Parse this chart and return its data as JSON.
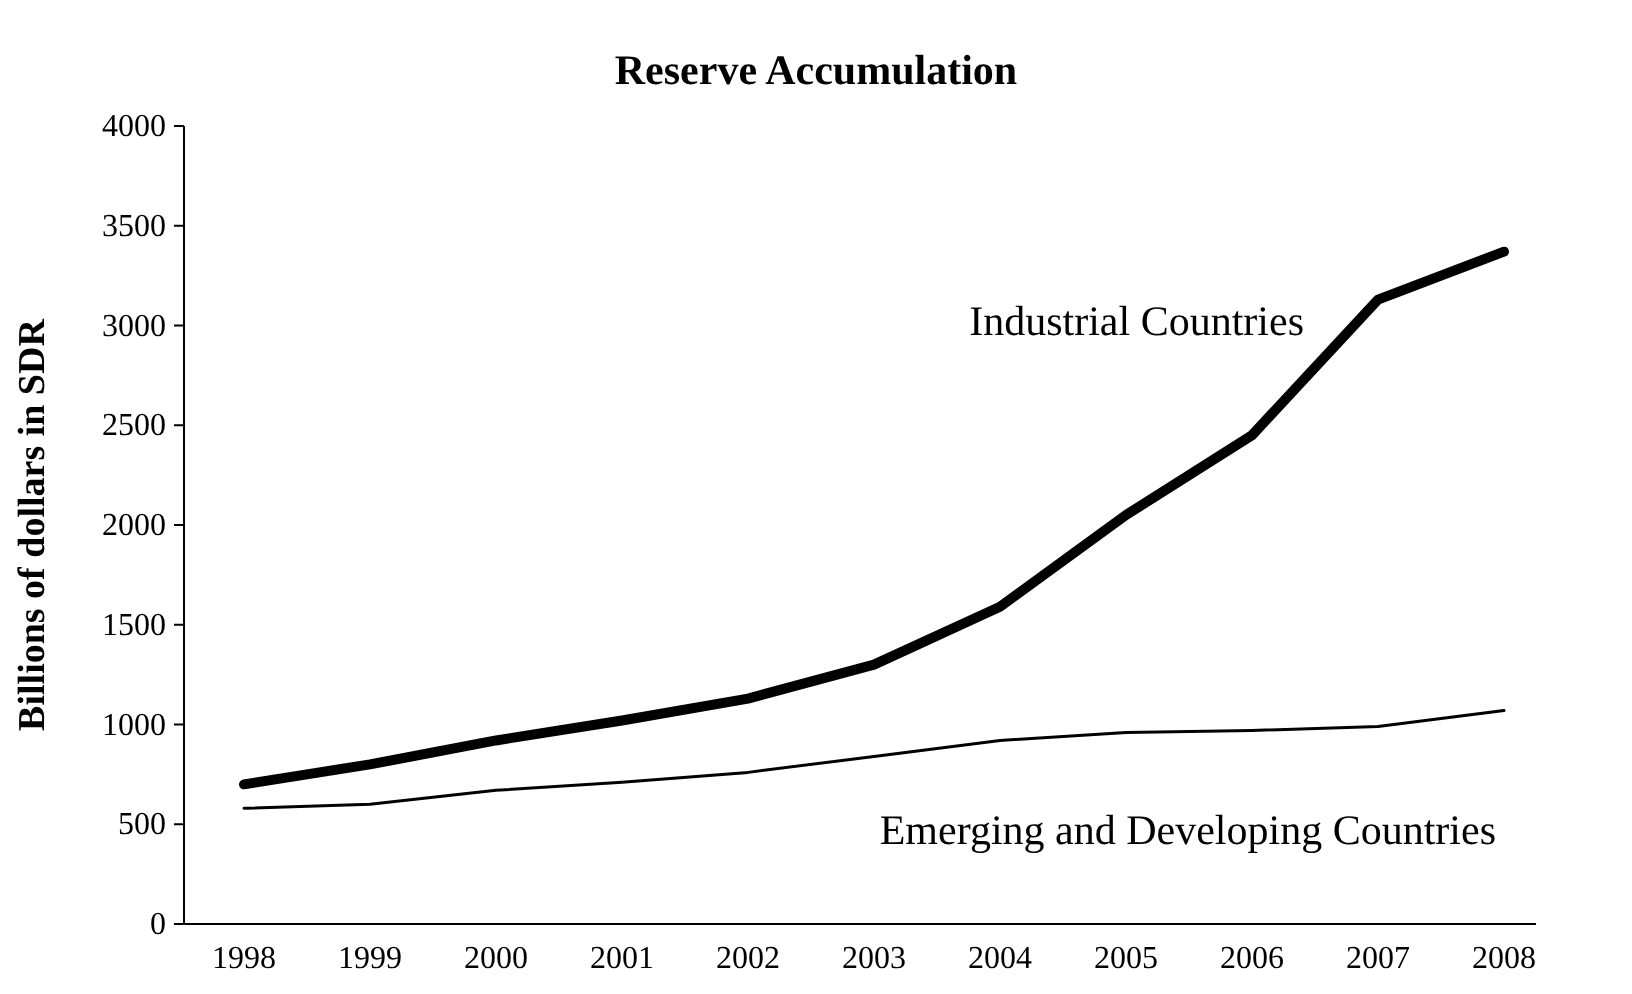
{
  "chart_data": {
    "type": "line",
    "title": "Reserve Accumulation",
    "ylabel": "Billions of dollars in  SDR",
    "categories": [
      "1998",
      "1999",
      "2000",
      "2001",
      "2002",
      "2003",
      "2004",
      "2005",
      "2006",
      "2007",
      "2008"
    ],
    "series": [
      {
        "name": "Industrial Countries",
        "color": "#000000",
        "values": [
          700,
          800,
          920,
          1020,
          1130,
          1300,
          1590,
          2050,
          2450,
          3130,
          3370
        ]
      },
      {
        "name": "Emerging and Developing Countries",
        "color": "#000000",
        "values": [
          580,
          600,
          670,
          710,
          760,
          840,
          920,
          960,
          970,
          990,
          1070
        ]
      }
    ],
    "ylim": [
      0,
      4000
    ],
    "yticks": [
      0,
      500,
      1000,
      1500,
      2000,
      2500,
      3000,
      3500,
      4000
    ],
    "grid": false,
    "legend": false,
    "marker": "none",
    "line_style": "solid"
  }
}
